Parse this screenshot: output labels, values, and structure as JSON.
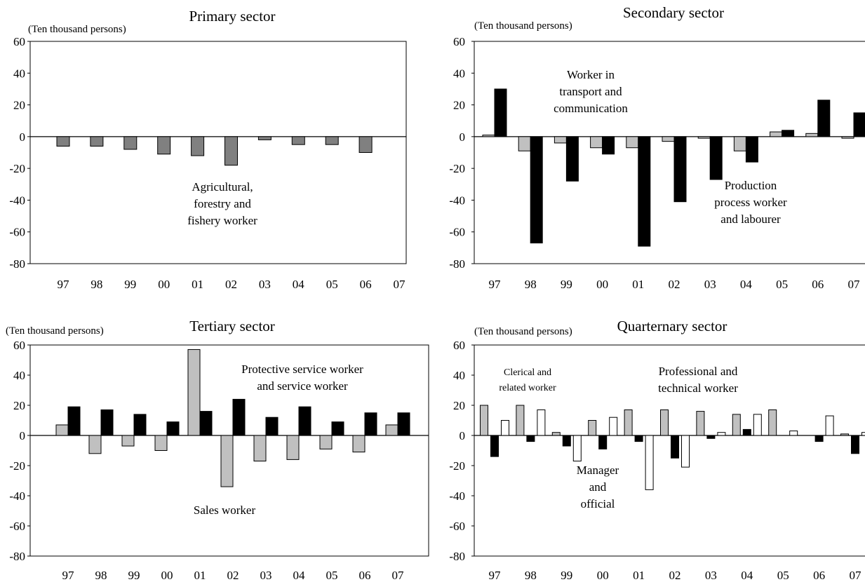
{
  "chart_data": [
    {
      "type": "bar",
      "title": "Primary sector",
      "ylabel": "(Ten thousand persons)",
      "xlabel": "",
      "ylim": [
        -80,
        60
      ],
      "yticks": [
        60,
        40,
        20,
        0,
        -20,
        -40,
        -60,
        -80
      ],
      "categories": [
        "97",
        "98",
        "99",
        "00",
        "01",
        "02",
        "03",
        "04",
        "05",
        "06",
        "07"
      ],
      "series": [
        {
          "color": "#808080",
          "values": [
            -6,
            -6,
            -8,
            -11,
            -12,
            -18,
            -2,
            -5,
            -5,
            -10,
            0
          ]
        }
      ],
      "annotations": [
        "Agricultural,",
        "forestry and",
        "fishery worker"
      ],
      "grid": false
    },
    {
      "type": "bar",
      "title": "Secondary sector",
      "ylabel": "(Ten thousand persons)",
      "xlabel": "",
      "ylim": [
        -80,
        60
      ],
      "yticks": [
        60,
        40,
        20,
        0,
        -20,
        -40,
        -60,
        -80
      ],
      "categories": [
        "97",
        "98",
        "99",
        "00",
        "01",
        "02",
        "03",
        "04",
        "05",
        "06",
        "07"
      ],
      "series": [
        {
          "color": "#c0c0c0",
          "values": [
            1,
            -9,
            -4,
            -7,
            -7,
            -3,
            -1,
            -9,
            3,
            2,
            -1
          ]
        },
        {
          "color": "#000000",
          "values": [
            30,
            -67,
            -28,
            -11,
            -69,
            -41,
            -27,
            -16,
            4,
            23,
            15
          ]
        }
      ],
      "annotations": [
        "Worker in",
        "transport and",
        "communication",
        "Production",
        "process worker",
        "and labourer"
      ],
      "grid": false
    },
    {
      "type": "bar",
      "title": "Tertiary sector",
      "ylabel": "(Ten thousand persons)",
      "xlabel": "",
      "ylim": [
        -80,
        60
      ],
      "yticks": [
        60,
        40,
        20,
        0,
        -20,
        -40,
        -60,
        -80
      ],
      "categories": [
        "97",
        "98",
        "99",
        "00",
        "01",
        "02",
        "03",
        "04",
        "05",
        "06",
        "07"
      ],
      "series": [
        {
          "color": "#c0c0c0",
          "values": [
            7,
            -12,
            -7,
            -10,
            57,
            -34,
            -17,
            -16,
            -9,
            -11,
            7
          ]
        },
        {
          "color": "#000000",
          "values": [
            19,
            17,
            14,
            9,
            16,
            24,
            12,
            19,
            9,
            15,
            15
          ]
        }
      ],
      "annotations": [
        "Protective service worker",
        "and service worker",
        "Sales worker"
      ],
      "grid": false
    },
    {
      "type": "bar",
      "title": "Quarternary sector",
      "ylabel": "(Ten thousand persons)",
      "xlabel": "",
      "ylim": [
        -80,
        60
      ],
      "yticks": [
        60,
        40,
        20,
        0,
        -20,
        -40,
        -60,
        -80
      ],
      "categories": [
        "97",
        "98",
        "99",
        "00",
        "01",
        "02",
        "03",
        "04",
        "05",
        "06",
        "07"
      ],
      "series": [
        {
          "color": "#c0c0c0",
          "values": [
            20,
            20,
            2,
            10,
            17,
            17,
            16,
            14,
            17,
            0,
            1
          ]
        },
        {
          "color": "#000000",
          "values": [
            -14,
            -4,
            -7,
            -9,
            -4,
            -15,
            -2,
            4,
            0,
            -4,
            -12
          ]
        },
        {
          "color": "#ffffff",
          "values": [
            10,
            17,
            -17,
            12,
            -36,
            -21,
            2,
            14,
            3,
            13,
            2
          ]
        }
      ],
      "annotations": [
        "Clerical and",
        "related worker",
        "Professional and",
        "technical worker",
        "Manager",
        "and",
        "official"
      ],
      "grid": false
    }
  ]
}
